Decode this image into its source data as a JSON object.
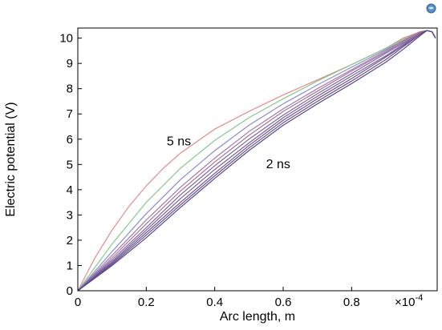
{
  "chart_data": {
    "type": "line",
    "xlabel": "Arc length, m",
    "ylabel": "Electric potential (V)",
    "x_multiplier": "×10",
    "x_multiplier_exp": "-4",
    "xlim": [
      0,
      1.05
    ],
    "ylim": [
      0,
      10.4
    ],
    "xticks": [
      "0",
      "0.2",
      "0.4",
      "0.6",
      "0.8"
    ],
    "yticks": [
      "0",
      "1",
      "2",
      "3",
      "4",
      "5",
      "6",
      "7",
      "8",
      "9",
      "10"
    ],
    "grid": false,
    "annotations": [
      {
        "text": "5 ns",
        "x": 0.26,
        "y": 5.75
      },
      {
        "text": "2 ns",
        "x": 0.55,
        "y": 4.85
      }
    ],
    "series": [
      {
        "color": "#e48a8a",
        "x": [
          0,
          0.05,
          0.1,
          0.15,
          0.2,
          0.25,
          0.3,
          0.4,
          0.5,
          0.6,
          0.7,
          0.8,
          0.9,
          0.95,
          1.0,
          1.02,
          1.035,
          1.045
        ],
        "y": [
          0,
          1.3,
          2.4,
          3.35,
          4.15,
          4.85,
          5.45,
          6.4,
          7.1,
          7.75,
          8.35,
          8.95,
          9.6,
          10.0,
          10.25,
          10.3,
          10.25,
          10.0
        ]
      },
      {
        "color": "#86c98a",
        "x": [
          0,
          0.1,
          0.2,
          0.3,
          0.4,
          0.5,
          0.6,
          0.7,
          0.8,
          0.9,
          0.95,
          1.0,
          1.02,
          1.035,
          1.045
        ],
        "y": [
          0,
          1.85,
          3.5,
          4.85,
          5.95,
          6.85,
          7.6,
          8.3,
          8.95,
          9.6,
          9.95,
          10.25,
          10.3,
          10.25,
          10.0
        ]
      },
      {
        "color": "#8a8ad8",
        "x": [
          0,
          0.1,
          0.2,
          0.3,
          0.4,
          0.5,
          0.6,
          0.7,
          0.8,
          0.9,
          0.95,
          1.0,
          1.02,
          1.035,
          1.045
        ],
        "y": [
          0,
          1.55,
          3.05,
          4.4,
          5.55,
          6.55,
          7.4,
          8.15,
          8.85,
          9.55,
          9.9,
          10.25,
          10.3,
          10.25,
          10.0
        ]
      },
      {
        "color": "#9e7cb0",
        "x": [
          0,
          0.1,
          0.2,
          0.3,
          0.4,
          0.5,
          0.6,
          0.7,
          0.8,
          0.9,
          0.95,
          1.0,
          1.02,
          1.035,
          1.045
        ],
        "y": [
          0,
          1.4,
          2.8,
          4.1,
          5.25,
          6.3,
          7.2,
          8.0,
          8.75,
          9.5,
          9.9,
          10.25,
          10.3,
          10.25,
          10.0
        ]
      },
      {
        "color": "#b07090",
        "x": [
          0,
          0.1,
          0.2,
          0.3,
          0.4,
          0.5,
          0.6,
          0.7,
          0.8,
          0.9,
          0.95,
          1.0,
          1.02,
          1.035,
          1.045
        ],
        "y": [
          0,
          1.3,
          2.65,
          3.95,
          5.1,
          6.15,
          7.1,
          7.9,
          8.7,
          9.45,
          9.85,
          10.25,
          10.3,
          10.25,
          10.0
        ]
      },
      {
        "color": "#6b6bb5",
        "x": [
          0,
          0.1,
          0.2,
          0.3,
          0.4,
          0.5,
          0.6,
          0.7,
          0.8,
          0.9,
          0.95,
          1.0,
          1.02,
          1.035,
          1.045
        ],
        "y": [
          0,
          1.22,
          2.5,
          3.8,
          4.95,
          6.0,
          6.95,
          7.8,
          8.6,
          9.4,
          9.8,
          10.2,
          10.3,
          10.25,
          10.0
        ]
      },
      {
        "color": "#8a5a8a",
        "x": [
          0,
          0.1,
          0.2,
          0.3,
          0.4,
          0.5,
          0.6,
          0.7,
          0.8,
          0.9,
          0.95,
          1.0,
          1.02,
          1.035,
          1.045
        ],
        "y": [
          0,
          1.15,
          2.4,
          3.65,
          4.8,
          5.85,
          6.85,
          7.7,
          8.5,
          9.3,
          9.75,
          10.2,
          10.3,
          10.25,
          10.0
        ]
      },
      {
        "color": "#5a5aa0",
        "x": [
          0,
          0.1,
          0.2,
          0.3,
          0.4,
          0.5,
          0.6,
          0.7,
          0.8,
          0.9,
          0.95,
          1.0,
          1.02,
          1.035,
          1.045
        ],
        "y": [
          0,
          1.1,
          2.3,
          3.5,
          4.65,
          5.75,
          6.75,
          7.6,
          8.4,
          9.25,
          9.7,
          10.15,
          10.3,
          10.25,
          10.0
        ]
      },
      {
        "color": "#7a4a7a",
        "x": [
          0,
          0.1,
          0.2,
          0.3,
          0.4,
          0.5,
          0.6,
          0.7,
          0.8,
          0.9,
          0.95,
          1.0,
          1.02,
          1.035,
          1.045
        ],
        "y": [
          0,
          1.05,
          2.2,
          3.4,
          4.55,
          5.65,
          6.65,
          7.5,
          8.3,
          9.15,
          9.65,
          10.15,
          10.3,
          10.25,
          10.0
        ]
      },
      {
        "color": "#4a4a90",
        "x": [
          0,
          0.1,
          0.2,
          0.3,
          0.4,
          0.5,
          0.6,
          0.7,
          0.8,
          0.9,
          0.95,
          1.0,
          1.02,
          1.035,
          1.045
        ],
        "y": [
          0,
          1.0,
          2.1,
          3.3,
          4.45,
          5.55,
          6.55,
          7.4,
          8.2,
          9.05,
          9.55,
          10.1,
          10.3,
          10.25,
          10.0
        ]
      }
    ]
  }
}
